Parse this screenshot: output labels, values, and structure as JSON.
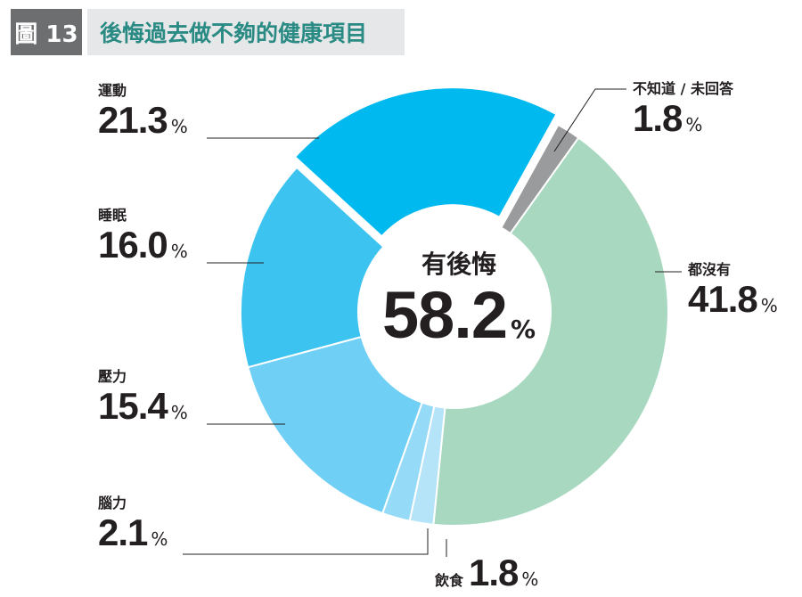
{
  "header": {
    "figure_label": "圖 13",
    "title": "後悔過去做不夠的健康項目"
  },
  "chart_data": {
    "type": "pie",
    "title": "後悔過去做不夠的健康項目",
    "center_label": "有後悔",
    "center_value": "58.2",
    "unit": "%",
    "slices": [
      {
        "label": "不知道 / 未回答",
        "value": 1.8,
        "display": "1.8",
        "color": "#9a9b9d"
      },
      {
        "label": "都沒有",
        "value": 41.8,
        "display": "41.8",
        "color": "#a8d8c0"
      },
      {
        "label": "飲食",
        "value": 1.8,
        "display": "1.8",
        "color": "#b5e4f8"
      },
      {
        "label": "腦力",
        "value": 2.1,
        "display": "2.1",
        "color": "#95daf6"
      },
      {
        "label": "壓力",
        "value": 15.4,
        "display": "15.4",
        "color": "#6fcff4"
      },
      {
        "label": "睡眠",
        "value": 16.0,
        "display": "16.0",
        "color": "#3cc3f0"
      },
      {
        "label": "運動",
        "value": 21.3,
        "display": "21.3",
        "color": "#00b9ef",
        "exploded": true
      }
    ]
  }
}
